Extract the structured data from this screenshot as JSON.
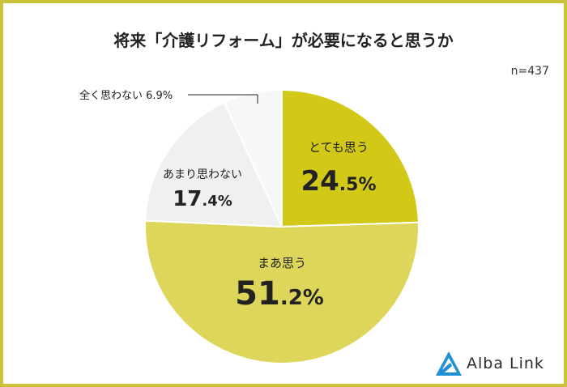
{
  "chart_data": {
    "type": "pie",
    "title": "将来「介護リフォーム」が必要になると思うか",
    "note": "n=437",
    "slices": [
      {
        "label": "とても思う",
        "value": 24.5,
        "int": "24",
        "dec": ".5%",
        "color": "#d2c817"
      },
      {
        "label": "まあ思う",
        "value": 51.2,
        "int": "51",
        "dec": ".2%",
        "color": "#ddd65a"
      },
      {
        "label": "あまり思わない",
        "value": 17.4,
        "int": "17",
        "dec": ".4%",
        "color": "#f0f0f0"
      },
      {
        "label": "全く思わない",
        "value": 6.9,
        "int": "",
        "dec": "",
        "text": "全く思わない 6.9%",
        "color": "#f7f7f7"
      }
    ]
  },
  "brand": {
    "name": "Alba Link",
    "color": "#1f8fd6"
  },
  "frame_color": "#c9c23a"
}
